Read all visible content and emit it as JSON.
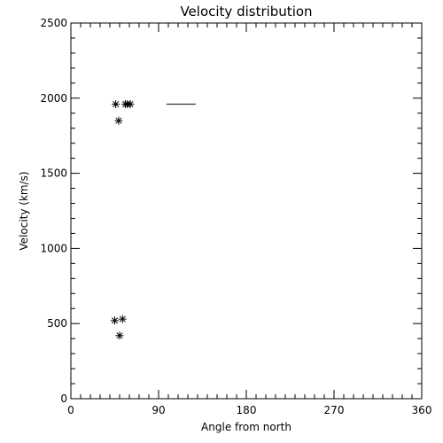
{
  "chart_data": {
    "type": "scatter",
    "title": "Velocity distribution",
    "xlabel": "Angle from north",
    "ylabel": "Velocity (km/s)",
    "xlim": [
      0,
      360
    ],
    "ylim": [
      0,
      2500
    ],
    "xticks": [
      0,
      90,
      180,
      270,
      360
    ],
    "yticks": [
      0,
      500,
      1000,
      1500,
      2000,
      2500
    ],
    "grid": false,
    "points": [
      {
        "x": 46,
        "y": 1960
      },
      {
        "x": 56,
        "y": 1960
      },
      {
        "x": 58,
        "y": 1960
      },
      {
        "x": 61,
        "y": 1960
      },
      {
        "x": 49,
        "y": 1850
      },
      {
        "x": 45,
        "y": 520
      },
      {
        "x": 53,
        "y": 530
      },
      {
        "x": 50,
        "y": 420
      }
    ],
    "segments": [
      {
        "x1": 98,
        "x2": 128,
        "y": 1960
      }
    ]
  }
}
